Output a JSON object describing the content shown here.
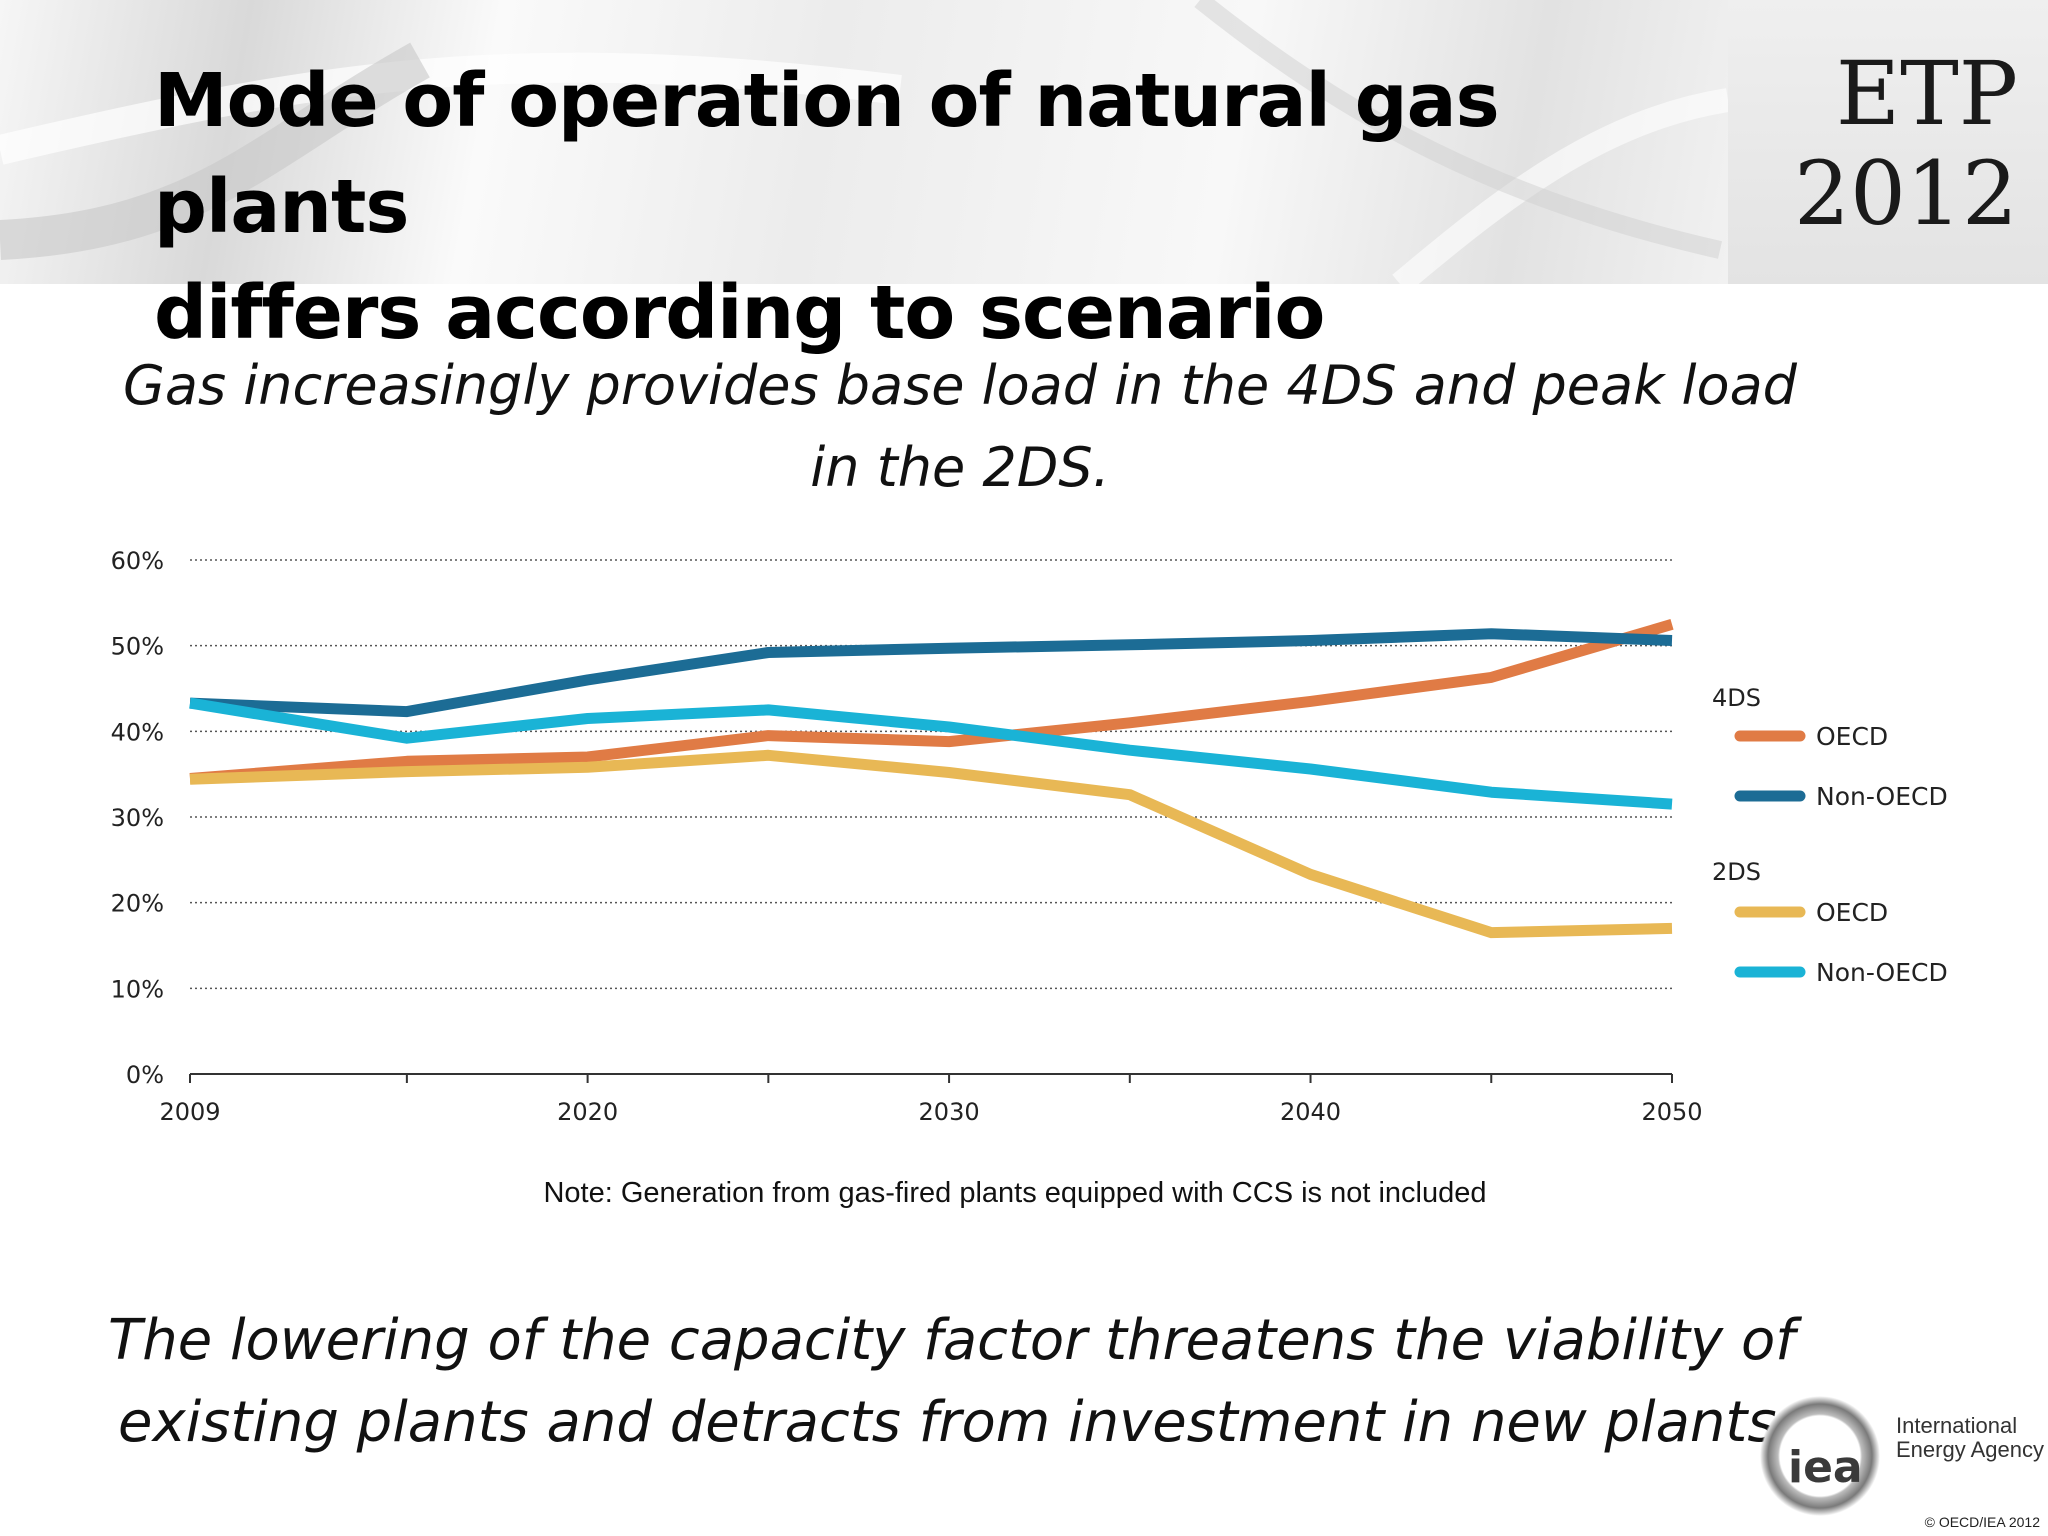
{
  "header": {
    "title_lines": [
      "Mode of operation of natural gas plants",
      "differs according to scenario"
    ],
    "logo_lines": [
      "ETP",
      "2012"
    ]
  },
  "subtitle_lines": [
    "Gas increasingly provides base load in the 4DS and peak load",
    "in the 2DS."
  ],
  "note": "Note: Generation from gas-fired plants equipped with CCS is not included",
  "conclusion_lines": [
    "The lowering of the capacity factor threatens the viability of",
    "existing plants and detracts from investment in new plants."
  ],
  "footer": {
    "org_logo_text": "iea",
    "org_name_lines": [
      "International",
      "Energy Agency"
    ],
    "copyright": "© OECD/IEA 2012"
  },
  "chart_data": {
    "type": "line",
    "title": "",
    "xlabel": "",
    "ylabel": "",
    "x": [
      2009,
      2015,
      2020,
      2025,
      2030,
      2035,
      2040,
      2045,
      2050
    ],
    "x_tick_labels": [
      "2009",
      "2020",
      "2030",
      "2040",
      "2050"
    ],
    "x_tick_values": [
      2009,
      2020,
      2030,
      2040,
      2050
    ],
    "y_tick_labels": [
      "0%",
      "10%",
      "20%",
      "30%",
      "40%",
      "50%",
      "60%"
    ],
    "y_tick_values": [
      0,
      10,
      20,
      30,
      40,
      50,
      60
    ],
    "ylim": [
      0,
      60
    ],
    "grid": "horizontal-dotted",
    "legend_position": "right",
    "legend_groups": [
      {
        "label": "4DS",
        "series": [
          0,
          1
        ]
      },
      {
        "label": "2DS",
        "series": [
          2,
          3
        ]
      }
    ],
    "series": [
      {
        "group": "4DS",
        "name": "OECD",
        "color": "#e07b45",
        "values": [
          34.5,
          36.5,
          37,
          39.5,
          38.8,
          41,
          43.5,
          46.3,
          52.5
        ]
      },
      {
        "group": "4DS",
        "name": "Non-OECD",
        "color": "#1c6c95",
        "values": [
          43.3,
          42.3,
          46,
          49.2,
          49.7,
          50.1,
          50.6,
          51.4,
          50.6
        ]
      },
      {
        "group": "2DS",
        "name": "OECD",
        "color": "#e8b855",
        "values": [
          34.4,
          35.3,
          35.8,
          37.2,
          35.2,
          32.6,
          23.3,
          16.5,
          17
        ]
      },
      {
        "group": "2DS",
        "name": "Non-OECD",
        "color": "#1ab3d6",
        "values": [
          43.3,
          39.2,
          41.5,
          42.5,
          40.5,
          37.8,
          35.6,
          32.9,
          31.5
        ]
      }
    ]
  }
}
